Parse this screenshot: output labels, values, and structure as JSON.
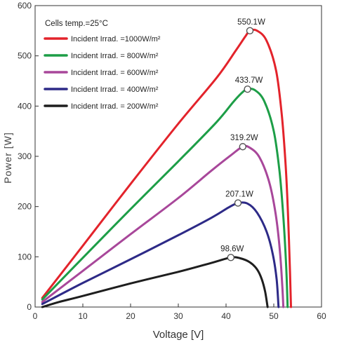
{
  "chart_data": {
    "type": "line",
    "title": "",
    "xlabel": "Voltage [V]",
    "ylabel": "Power [W]",
    "xlim": [
      0,
      60
    ],
    "ylim": [
      0,
      600
    ],
    "x_ticks": [
      0,
      10,
      20,
      30,
      40,
      50,
      60
    ],
    "y_ticks": [
      0,
      100,
      200,
      300,
      400,
      500,
      600
    ],
    "grid": false,
    "legend_title": "Cells temp.=25°C",
    "legend_position": "top-left",
    "series": [
      {
        "name": "Incident Irrad. =1000W/m²",
        "color": "#e3232b",
        "peak": {
          "label": "550.1W",
          "x": 45,
          "y": 550
        },
        "points": [
          [
            1.5,
            18
          ],
          [
            10,
            122
          ],
          [
            20,
            245
          ],
          [
            30,
            365
          ],
          [
            38,
            456
          ],
          [
            42,
            510
          ],
          [
            44,
            538
          ],
          [
            45,
            550
          ],
          [
            46.5,
            550
          ],
          [
            48.5,
            530
          ],
          [
            50.5,
            470
          ],
          [
            51.7,
            380
          ],
          [
            52.5,
            280
          ],
          [
            53,
            180
          ],
          [
            53.4,
            70
          ],
          [
            53.6,
            0
          ]
        ]
      },
      {
        "name": "Incident Irrad. = 800W/m²",
        "color": "#1d9e47",
        "peak": {
          "label": "433.7W",
          "x": 44.5,
          "y": 433.7
        },
        "points": [
          [
            1.5,
            15
          ],
          [
            10,
            98
          ],
          [
            20,
            195
          ],
          [
            30,
            290
          ],
          [
            38,
            368
          ],
          [
            41.5,
            408
          ],
          [
            43.5,
            428
          ],
          [
            44.5,
            433.7
          ],
          [
            46,
            432
          ],
          [
            48,
            410
          ],
          [
            50,
            350
          ],
          [
            51.2,
            270
          ],
          [
            52,
            180
          ],
          [
            52.6,
            80
          ],
          [
            52.9,
            0
          ]
        ]
      },
      {
        "name": "Incident Irrad. = 600W/m²",
        "color": "#a8479a",
        "peak": {
          "label": "319.2W",
          "x": 43.5,
          "y": 319.2
        },
        "points": [
          [
            1.5,
            10
          ],
          [
            10,
            72
          ],
          [
            20,
            145
          ],
          [
            30,
            217
          ],
          [
            37,
            272
          ],
          [
            41,
            302
          ],
          [
            43.5,
            319.2
          ],
          [
            45,
            317
          ],
          [
            47,
            298
          ],
          [
            49,
            250
          ],
          [
            50.4,
            185
          ],
          [
            51.3,
            110
          ],
          [
            51.8,
            40
          ],
          [
            52,
            0
          ]
        ]
      },
      {
        "name": "Incident Irrad. = 400W/m²",
        "color": "#2d2a87",
        "peak": {
          "label": "207.1W",
          "x": 42.5,
          "y": 207.1
        },
        "points": [
          [
            1.5,
            6
          ],
          [
            10,
            48
          ],
          [
            20,
            95
          ],
          [
            30,
            143
          ],
          [
            37,
            178
          ],
          [
            40.5,
            198
          ],
          [
            42.5,
            207.1
          ],
          [
            44.5,
            206
          ],
          [
            46.5,
            188
          ],
          [
            48.5,
            150
          ],
          [
            49.8,
            105
          ],
          [
            50.6,
            55
          ],
          [
            51,
            0
          ]
        ]
      },
      {
        "name": "Incident Irrad. = 200W/m²",
        "color": "#1e1e1e",
        "peak": {
          "label": "98.6W",
          "x": 41,
          "y": 98.6
        },
        "points": [
          [
            1.5,
            0
          ],
          [
            5,
            10
          ],
          [
            10,
            22
          ],
          [
            20,
            47
          ],
          [
            30,
            70
          ],
          [
            37,
            88
          ],
          [
            41,
            98.6
          ],
          [
            43,
            97
          ],
          [
            45,
            89
          ],
          [
            46.5,
            75
          ],
          [
            47.5,
            55
          ],
          [
            48.2,
            30
          ],
          [
            48.7,
            0
          ]
        ]
      }
    ]
  }
}
